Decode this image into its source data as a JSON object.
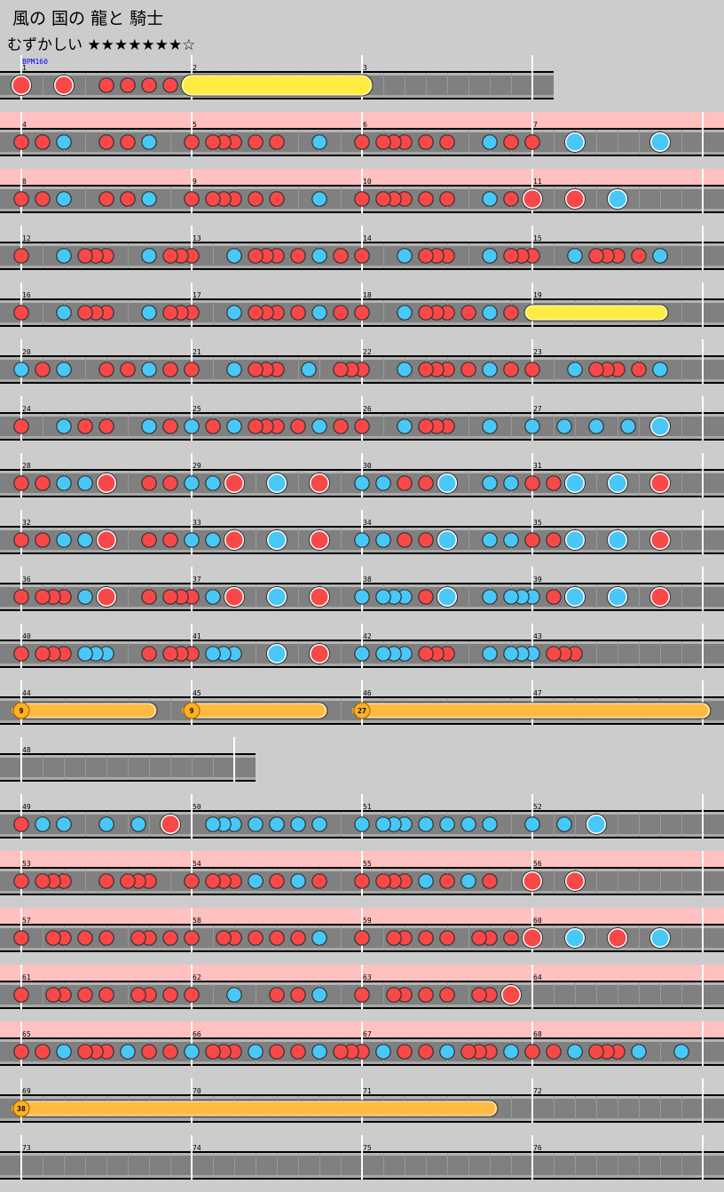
{
  "song": {
    "title": "風の 国の 龍と 騎士",
    "difficulty_label": "むずかしい",
    "stars": "★★★★★★★☆",
    "star_level": 7,
    "star_max": 8
  },
  "bpm_label": "BPM160",
  "colors": {
    "background": "#cccccc",
    "gogo": "#ffc0c0",
    "lane": "#808080",
    "don": "#f84848",
    "ka": "#48c8f8",
    "roll": "#ffec40",
    "balloon": "#ffbb40",
    "bpm_text": "#0000ff"
  },
  "legend": {
    "d": "don (small)",
    "k": "ka (small)",
    "D": "don (big)",
    "K": "ka (big)",
    ".": "empty 1/16"
  },
  "rows": [
    {
      "gogo": false,
      "measures": [
        1,
        2,
        3
      ]
    },
    {
      "gogo": true,
      "measures": [
        4,
        5,
        6,
        7
      ]
    },
    {
      "gogo": true,
      "measures": [
        8,
        9,
        10,
        11
      ]
    },
    {
      "gogo": false,
      "measures": [
        12,
        13,
        14,
        15
      ]
    },
    {
      "gogo": false,
      "measures": [
        16,
        17,
        18,
        19
      ]
    },
    {
      "gogo": false,
      "measures": [
        20,
        21,
        22,
        23
      ]
    },
    {
      "gogo": false,
      "measures": [
        24,
        25,
        26,
        27
      ]
    },
    {
      "gogo": false,
      "measures": [
        28,
        29,
        30,
        31
      ]
    },
    {
      "gogo": false,
      "measures": [
        32,
        33,
        34,
        35
      ]
    },
    {
      "gogo": false,
      "measures": [
        36,
        37,
        38,
        39
      ]
    },
    {
      "gogo": false,
      "measures": [
        40,
        41,
        42,
        43
      ]
    },
    {
      "gogo": false,
      "measures": [
        44,
        45,
        46,
        47
      ]
    },
    {
      "gogo": false,
      "measures": [
        48
      ]
    },
    {
      "gogo": false,
      "measures": [
        49,
        50,
        51,
        52
      ]
    },
    {
      "gogo": true,
      "measures": [
        53,
        54,
        55,
        56
      ]
    },
    {
      "gogo": true,
      "measures": [
        57,
        58,
        59,
        60
      ]
    },
    {
      "gogo": true,
      "measures": [
        61,
        62,
        63,
        64
      ]
    },
    {
      "gogo": true,
      "measures": [
        65,
        66,
        67,
        68
      ]
    },
    {
      "gogo": false,
      "measures": [
        69,
        70,
        71,
        72
      ]
    },
    {
      "gogo": false,
      "measures": [
        73,
        74,
        75,
        76
      ]
    }
  ],
  "measures": {
    "1": "D...D...d.d.d.d.",
    "2": "",
    "3": "",
    "4": "d.d.k...d.d.k...",
    "5": "d.ddd.d.d...k...",
    "6": "d.ddd.d.d...k.d.",
    "7": "d...K.......K...",
    "8": "d.d.k...d.d.k...",
    "9": "d.ddd.d.d...k...",
    "10": "d.ddd.d.d...k.d.",
    "11": "D...D...K.......",
    "12": "d...k.ddd...k.dd",
    "13": "d...k.ddd.d.k.d.",
    "14": "d...k.ddd...k.dd",
    "15": "d...k.ddd.d.k...",
    "16": "d...k.ddd...k.dd",
    "17": "d...k.ddd.d.k.d.",
    "18": "d...k.ddd.d.k.d.",
    "19": "",
    "20": "k.d.k...d.d.k.d.",
    "21": "d...k.ddd..k..dd",
    "22": "d...k.ddd.d.k.d.",
    "23": "d...k.ddd.d.k...",
    "24": "d...k.d.d...k.d.",
    "25": "k.d.k.ddd.d.k.d.",
    "26": "d...k.ddd...k...",
    "27": "k..k..k..k..K...",
    "28": "d.d.k.k.D...d.d.",
    "29": "k.k.D...K...D...",
    "30": "k.k.d.d.K...k.k.",
    "31": "d.d.K...K...D...",
    "32": "d.d.k.k.D...d.d.",
    "33": "k.k.D...K...D...",
    "34": "k.k.d.d.K...k.k.",
    "35": "d.d.K...K...D...",
    "36": "d.ddd.k.D...d.dd",
    "37": "d.k.D...K...D...",
    "38": "k.kkk.d.K...k.kk",
    "39": "k.d.K...K...D...",
    "40": "d.ddd.kkk...d.dd",
    "41": "d.kkk...K...D...",
    "42": "k.kkk.ddd...k.kk",
    "43": "k.ddd...........",
    "44": "",
    "45": "",
    "46": "",
    "47": "",
    "48": "....................",
    "49": "d.k.k...k..k..D.",
    "50": "..kkk.k.k.k.k...",
    "51": "k.kkk.k.k.k.k...",
    "52": "k..k..K.........",
    "53": "d.ddd...d.ddd...",
    "54": "d.ddd.k.d.k.d...",
    "55": "d.ddd.k.d.k.d...",
    "56": "D...D...........",
    "57": "d..dd.d.d..dd.d.",
    "58": "d..dd.d.d.d.k...",
    "59": "d..dd.d.d..dd.d.",
    "60": "D...K...D...K...",
    "61": "d..dd.d.d..dd.d.",
    "62": "d...k...d.d.k...",
    "63": "d..dd.d.d..dd.D.",
    "64": "",
    "65": "d.d.k.ddd.k.d.d.",
    "66": "k.ddd.k.d.d.k.dd",
    "67": "d.k.d.d.k.ddd.k.",
    "68": "d.d.k.ddd.k...k.",
    "69": "",
    "70": "",
    "71": "",
    "72": "",
    "73": "",
    "74": "",
    "75": "",
    "76": ""
  },
  "measure_beats": {
    "48": 5
  },
  "long_notes": [
    {
      "type": "roll",
      "size": "big",
      "from": [
        2,
        0
      ],
      "to": [
        3,
        0
      ]
    },
    {
      "type": "roll",
      "size": "small",
      "from": [
        19,
        0
      ],
      "to": [
        19,
        12
      ]
    },
    {
      "type": "balloon",
      "count": "9",
      "from": [
        44,
        0
      ],
      "to": [
        44,
        12
      ]
    },
    {
      "type": "balloon",
      "count": "9",
      "from": [
        45,
        0
      ],
      "to": [
        45,
        12
      ]
    },
    {
      "type": "balloon",
      "count": "27",
      "from": [
        46,
        0
      ],
      "to": [
        47,
        16
      ]
    },
    {
      "type": "balloon",
      "count": "38",
      "from": [
        69,
        0
      ],
      "to": [
        71,
        12
      ]
    }
  ]
}
